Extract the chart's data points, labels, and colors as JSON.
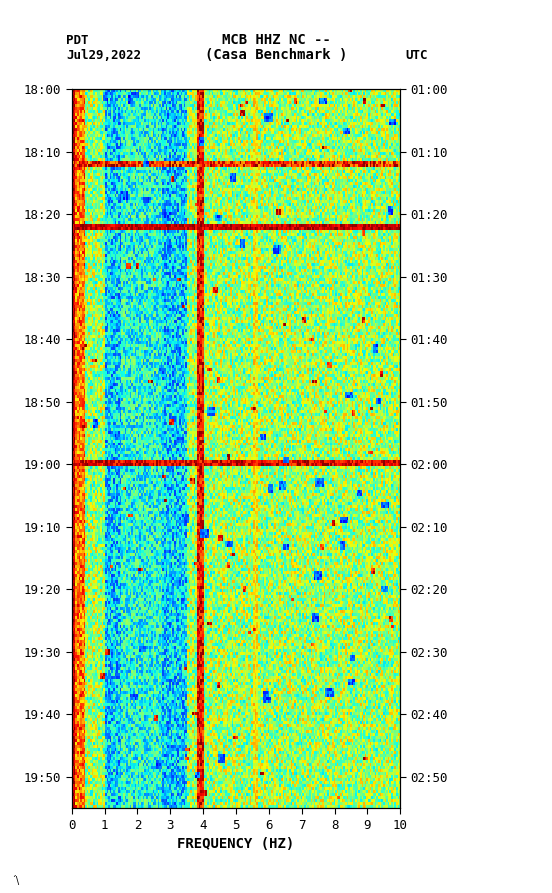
{
  "title_line1": "MCB HHZ NC --",
  "title_line2": "(Casa Benchmark )",
  "left_label": "PDT",
  "date_label": "Jul29,2022",
  "right_label": "UTC",
  "xlabel": "FREQUENCY (HZ)",
  "freq_min": 0,
  "freq_max": 10,
  "freq_ticks": [
    0,
    1,
    2,
    3,
    4,
    5,
    6,
    7,
    8,
    9,
    10
  ],
  "pdt_ticks": [
    "18:00",
    "18:10",
    "18:20",
    "18:30",
    "18:40",
    "18:50",
    "19:00",
    "19:10",
    "19:20",
    "19:30",
    "19:40",
    "19:50"
  ],
  "utc_ticks": [
    "01:00",
    "01:10",
    "01:20",
    "01:30",
    "01:40",
    "01:50",
    "02:00",
    "02:10",
    "02:20",
    "02:30",
    "02:40",
    "02:50"
  ],
  "background_color": "#ffffff",
  "usgs_color": "#006633",
  "colormap": "jet",
  "seed": 42,
  "n_freq": 200,
  "n_time": 240,
  "total_minutes": 115
}
